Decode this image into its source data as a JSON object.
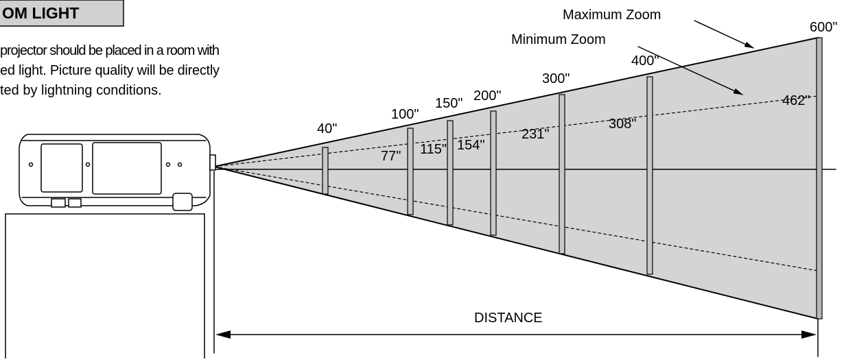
{
  "header": {
    "title": "OM LIGHT"
  },
  "paragraph": [
    "projector should be placed in a room with",
    "ed light. Picture quality will be directly",
    "ted by lightning conditions."
  ],
  "zoom": {
    "maximum": "Maximum Zoom",
    "minimum": "Minimum Zoom"
  },
  "max_sizes": [
    "40\"",
    "100\"",
    "150\"",
    "200\"",
    "300\"",
    "400\"",
    "600\""
  ],
  "min_sizes": [
    "77\"",
    "115\"",
    "154\"",
    "231\"",
    "308\"",
    "462\""
  ],
  "distance": "DISTANCE"
}
